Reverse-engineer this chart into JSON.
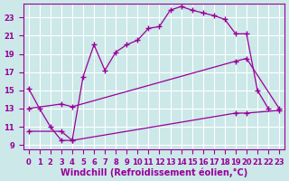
{
  "xlabel": "Windchill (Refroidissement éolien,°C)",
  "background_color": "#cce8e8",
  "grid_color": "#ffffff",
  "line_color": "#990099",
  "xlim": [
    -0.5,
    23.5
  ],
  "ylim": [
    8.5,
    24.5
  ],
  "xticks": [
    0,
    1,
    2,
    3,
    4,
    5,
    6,
    7,
    8,
    9,
    10,
    11,
    12,
    13,
    14,
    15,
    16,
    17,
    18,
    19,
    20,
    21,
    22,
    23
  ],
  "yticks": [
    9,
    11,
    13,
    15,
    17,
    19,
    21,
    23
  ],
  "font_color": "#990099",
  "tick_fontsize": 6,
  "label_fontsize": 7,
  "line1_x": [
    0,
    1,
    2,
    3,
    4,
    5,
    6,
    7,
    8,
    9,
    10,
    11,
    12,
    13,
    14,
    15,
    16,
    17,
    18,
    19,
    20,
    21,
    22
  ],
  "line1_y": [
    15.2,
    13.0,
    11.0,
    9.5,
    9.5,
    16.5,
    20.0,
    17.2,
    19.2,
    20.0,
    20.5,
    21.8,
    22.0,
    23.8,
    24.2,
    23.8,
    23.5,
    23.2,
    22.8,
    21.2,
    21.2,
    15.0,
    13.0
  ],
  "line2_x": [
    0,
    3,
    4,
    19,
    20,
    23
  ],
  "line2_y": [
    13.0,
    13.5,
    13.2,
    18.2,
    18.5,
    13.0
  ],
  "line3_x": [
    0,
    3,
    4,
    19,
    20,
    23
  ],
  "line3_y": [
    10.5,
    10.5,
    9.5,
    12.5,
    12.5,
    12.8
  ]
}
